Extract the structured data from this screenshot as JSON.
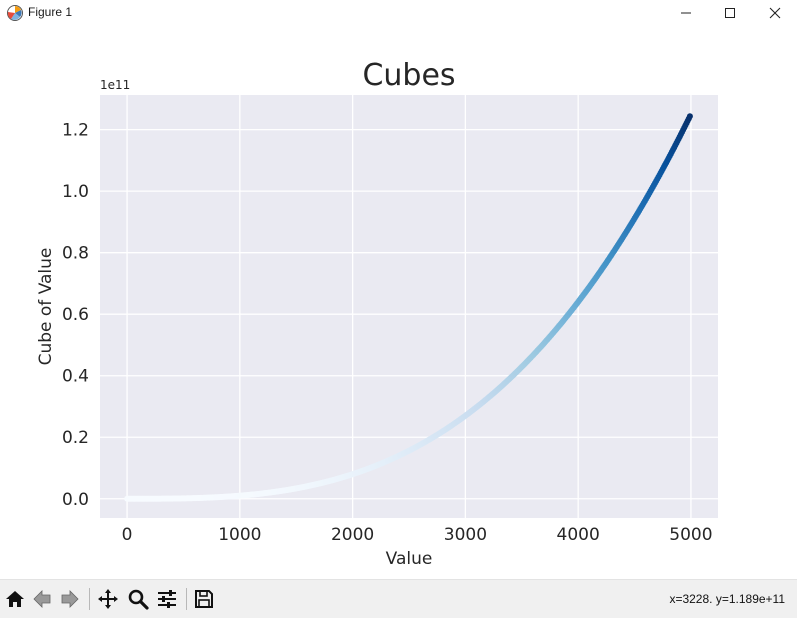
{
  "window": {
    "title": "Figure 1",
    "minimize_glyph": "—",
    "maximize_glyph": "☐",
    "close_glyph": "✕"
  },
  "toolbar": {
    "icons": [
      "home-icon",
      "back-arrow-icon",
      "forward-arrow-icon",
      "pan-move-icon",
      "zoom-magnifier-icon",
      "configure-subplots-icon",
      "save-floppy-icon"
    ],
    "coords": "x=3228. y=1.189e+11"
  },
  "chart_data": {
    "type": "scatter",
    "title": "Cubes",
    "xlabel": "Value",
    "ylabel": "Cube of Value",
    "offset_text": "1e11",
    "x_range": [
      1,
      5000
    ],
    "y_function": "x^3",
    "colormap": "Blues",
    "colormap_stops": [
      "#f7fbff",
      "#deebf7",
      "#c6dbef",
      "#9ecae1",
      "#6baed6",
      "#4292c6",
      "#2171b5",
      "#08519c",
      "#08306b"
    ],
    "xlim": [
      -240,
      5240
    ],
    "ylim": [
      -6250000000.0,
      131250000000.0
    ],
    "xticks": [
      0,
      1000,
      2000,
      3000,
      4000,
      5000
    ],
    "xtick_labels": [
      "0",
      "1000",
      "2000",
      "3000",
      "4000",
      "5000"
    ],
    "yticks": [
      0,
      20000000000.0,
      40000000000.0,
      60000000000.0,
      80000000000.0,
      100000000000.0,
      120000000000.0
    ],
    "ytick_labels": [
      "0.0",
      "0.2",
      "0.4",
      "0.6",
      "0.8",
      "1.0",
      "1.2"
    ],
    "style": "seaborn",
    "background": "#eaeaf2",
    "grid": true,
    "grid_color": "#ffffff"
  }
}
